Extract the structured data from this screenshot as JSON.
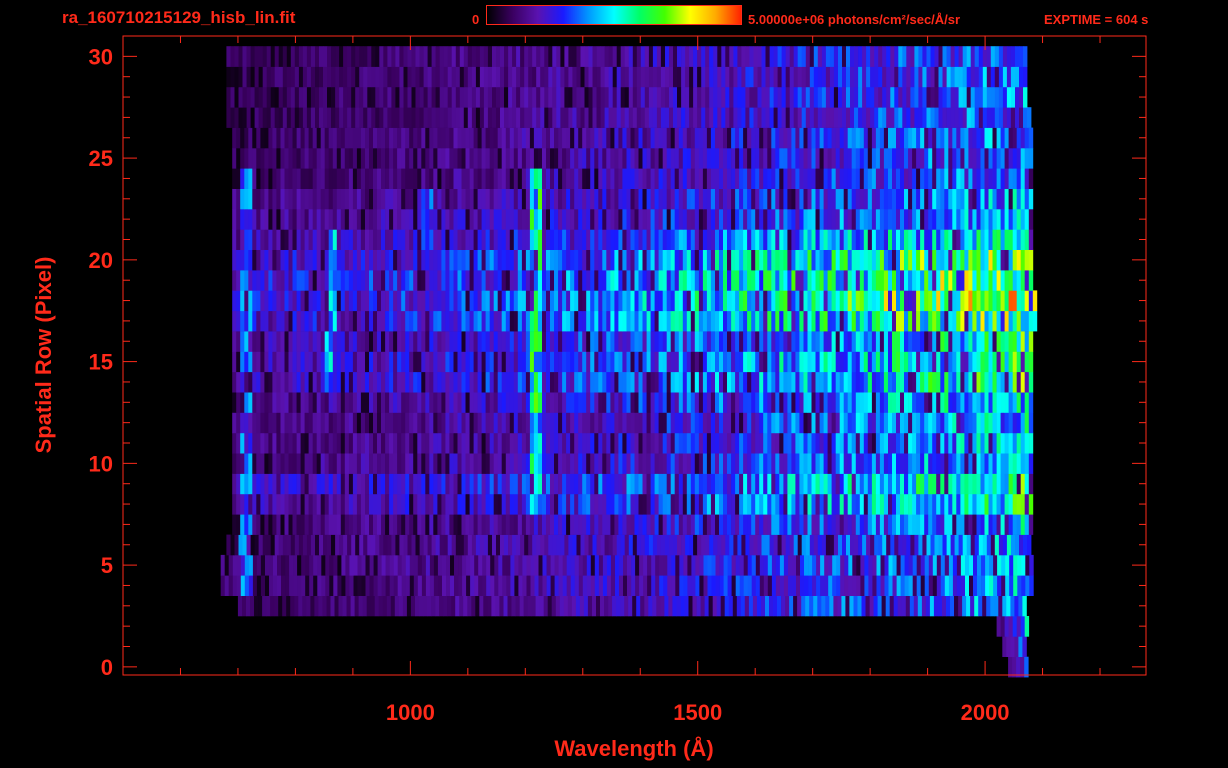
{
  "header": {
    "file_title": "ra_160710215129_hisb_lin.fit",
    "colorbar_min_label": "0",
    "colorbar_max_label": "5.00000e+06 photons/cm²/sec/Å/sr",
    "exptime_label": "EXPTIME = 604 s"
  },
  "colors": {
    "axis": "#ff2a1a",
    "background": "#000000",
    "colormap": [
      "#000000",
      "#3a0060",
      "#5a12b0",
      "#1a1aff",
      "#0099ff",
      "#00ffff",
      "#00ff66",
      "#44ff00",
      "#ffff00",
      "#ffaa00",
      "#ff2200"
    ]
  },
  "chart_data": {
    "type": "heatmap",
    "title": "ra_160710215129_hisb_lin.fit",
    "xlabel": "Wavelength (Å)",
    "ylabel": "Spatial Row (Pixel)",
    "xlim": [
      500,
      2280
    ],
    "ylim": [
      -0.4,
      31
    ],
    "x_ticks": [
      1000,
      1500,
      2000
    ],
    "y_ticks": [
      0,
      5,
      10,
      15,
      20,
      25,
      30
    ],
    "colorbar_range": [
      0,
      5000000
    ],
    "colorbar_unit": "photons/cm²/sec/Å/sr",
    "exptime_s": 604,
    "grid": false,
    "rows": [
      {
        "row": 0,
        "x_start": 2040,
        "x_end": 2070,
        "base": 0.15,
        "hot_end": 0.35
      },
      {
        "row": 1,
        "x_start": 2030,
        "x_end": 2070,
        "base": 0.15,
        "hot_end": 0.45
      },
      {
        "row": 2,
        "x_start": 2020,
        "x_end": 2070,
        "base": 0.15,
        "hot_end": 0.45
      },
      {
        "row": 3,
        "x_start": 700,
        "x_end": 2070,
        "base": 0.12,
        "hot_end": 0.45
      },
      {
        "row": 4,
        "x_start": 670,
        "x_end": 2080,
        "base": 0.13,
        "hot_end": 0.45
      },
      {
        "row": 5,
        "x_start": 670,
        "x_end": 2080,
        "base": 0.14,
        "hot_end": 0.45
      },
      {
        "row": 6,
        "x_start": 680,
        "x_end": 2080,
        "base": 0.14,
        "hot_end": 0.45
      },
      {
        "row": 7,
        "x_start": 690,
        "x_end": 2080,
        "base": 0.14,
        "hot_end": 0.48
      },
      {
        "row": 8,
        "x_start": 690,
        "x_end": 2080,
        "base": 0.2,
        "hot_end": 0.58
      },
      {
        "row": 9,
        "x_start": 690,
        "x_end": 2080,
        "base": 0.22,
        "hot_end": 0.6
      },
      {
        "row": 10,
        "x_start": 690,
        "x_end": 2080,
        "base": 0.16,
        "hot_end": 0.5
      },
      {
        "row": 11,
        "x_start": 690,
        "x_end": 2080,
        "base": 0.15,
        "hot_end": 0.48
      },
      {
        "row": 12,
        "x_start": 690,
        "x_end": 2080,
        "base": 0.15,
        "hot_end": 0.5
      },
      {
        "row": 13,
        "x_start": 690,
        "x_end": 2080,
        "base": 0.17,
        "hot_end": 0.55
      },
      {
        "row": 14,
        "x_start": 690,
        "x_end": 2080,
        "base": 0.22,
        "hot_end": 0.62
      },
      {
        "row": 15,
        "x_start": 690,
        "x_end": 2080,
        "base": 0.22,
        "hot_end": 0.64
      },
      {
        "row": 16,
        "x_start": 690,
        "x_end": 2080,
        "base": 0.2,
        "hot_end": 0.6
      },
      {
        "row": 17,
        "x_start": 690,
        "x_end": 2090,
        "base": 0.25,
        "hot_end": 0.75
      },
      {
        "row": 18,
        "x_start": 690,
        "x_end": 2090,
        "base": 0.26,
        "hot_end": 0.82
      },
      {
        "row": 19,
        "x_start": 690,
        "x_end": 2080,
        "base": 0.26,
        "hot_end": 0.78
      },
      {
        "row": 20,
        "x_start": 690,
        "x_end": 2080,
        "base": 0.24,
        "hot_end": 0.72
      },
      {
        "row": 21,
        "x_start": 690,
        "x_end": 2080,
        "base": 0.2,
        "hot_end": 0.58
      },
      {
        "row": 22,
        "x_start": 690,
        "x_end": 2080,
        "base": 0.17,
        "hot_end": 0.48
      },
      {
        "row": 23,
        "x_start": 690,
        "x_end": 2080,
        "base": 0.16,
        "hot_end": 0.45
      },
      {
        "row": 24,
        "x_start": 690,
        "x_end": 2080,
        "base": 0.13,
        "hot_end": 0.42
      },
      {
        "row": 25,
        "x_start": 690,
        "x_end": 2080,
        "base": 0.12,
        "hot_end": 0.42
      },
      {
        "row": 26,
        "x_start": 690,
        "x_end": 2080,
        "base": 0.12,
        "hot_end": 0.42
      },
      {
        "row": 27,
        "x_start": 680,
        "x_end": 2080,
        "base": 0.11,
        "hot_end": 0.4
      },
      {
        "row": 28,
        "x_start": 680,
        "x_end": 2070,
        "base": 0.11,
        "hot_end": 0.4
      },
      {
        "row": 29,
        "x_start": 680,
        "x_end": 2070,
        "base": 0.11,
        "hot_end": 0.4
      },
      {
        "row": 30,
        "x_start": 680,
        "x_end": 2070,
        "base": 0.11,
        "hot_end": 0.4
      }
    ],
    "emission_features": [
      {
        "x": 1216,
        "rows": [
          8,
          24
        ],
        "intensity": 0.55
      },
      {
        "x": 710,
        "rows": [
          4,
          24
        ],
        "intensity": 0.35
      },
      {
        "x": 860,
        "rows": [
          14,
          21
        ],
        "intensity": 0.42
      },
      {
        "x": 1025,
        "rows": [
          19,
          23
        ],
        "intensity": 0.33
      }
    ]
  }
}
